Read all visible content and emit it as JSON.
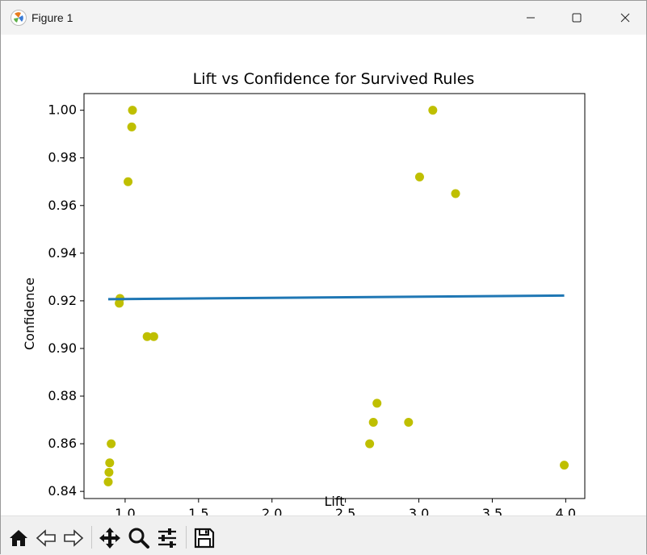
{
  "window": {
    "title": "Figure 1",
    "icons": [
      "matplotlib-icon",
      "minimize-icon",
      "maximize-icon",
      "close-icon"
    ]
  },
  "toolbar": {
    "buttons": [
      "home-icon",
      "back-icon",
      "forward-icon",
      "pan-icon",
      "zoom-icon",
      "configure-subplots-icon",
      "save-icon"
    ]
  },
  "chart_data": {
    "type": "scatter",
    "title": "Lift vs Confidence for Survived Rules",
    "xlabel": "Lift",
    "ylabel": "Confidence",
    "xlim": [
      0.72,
      4.13
    ],
    "ylim": [
      0.837,
      1.007
    ],
    "xticks": [
      "1.0",
      "1.5",
      "2.0",
      "2.5",
      "3.0",
      "3.5",
      "4.0"
    ],
    "yticks": [
      "0.84",
      "0.86",
      "0.88",
      "0.90",
      "0.92",
      "0.94",
      "0.96",
      "0.98",
      "1.00"
    ],
    "grid": false,
    "series": [
      {
        "kind": "scatter",
        "color": "#bfbf00",
        "points": [
          [
            1.05,
            1.0
          ],
          [
            1.045,
            0.993
          ],
          [
            1.02,
            0.97
          ],
          [
            0.965,
            0.921
          ],
          [
            0.96,
            0.919
          ],
          [
            1.15,
            0.905
          ],
          [
            1.195,
            0.905
          ],
          [
            0.905,
            0.86
          ],
          [
            0.895,
            0.852
          ],
          [
            0.89,
            0.848
          ],
          [
            0.885,
            0.844
          ],
          [
            3.095,
            1.0
          ],
          [
            3.005,
            0.972
          ],
          [
            3.25,
            0.965
          ],
          [
            2.715,
            0.877
          ],
          [
            2.69,
            0.869
          ],
          [
            2.93,
            0.869
          ],
          [
            2.665,
            0.86
          ],
          [
            3.99,
            0.851
          ]
        ]
      },
      {
        "kind": "line",
        "color": "#1f77b4",
        "points": [
          [
            0.885,
            0.9207
          ],
          [
            3.99,
            0.9222
          ]
        ]
      }
    ]
  }
}
